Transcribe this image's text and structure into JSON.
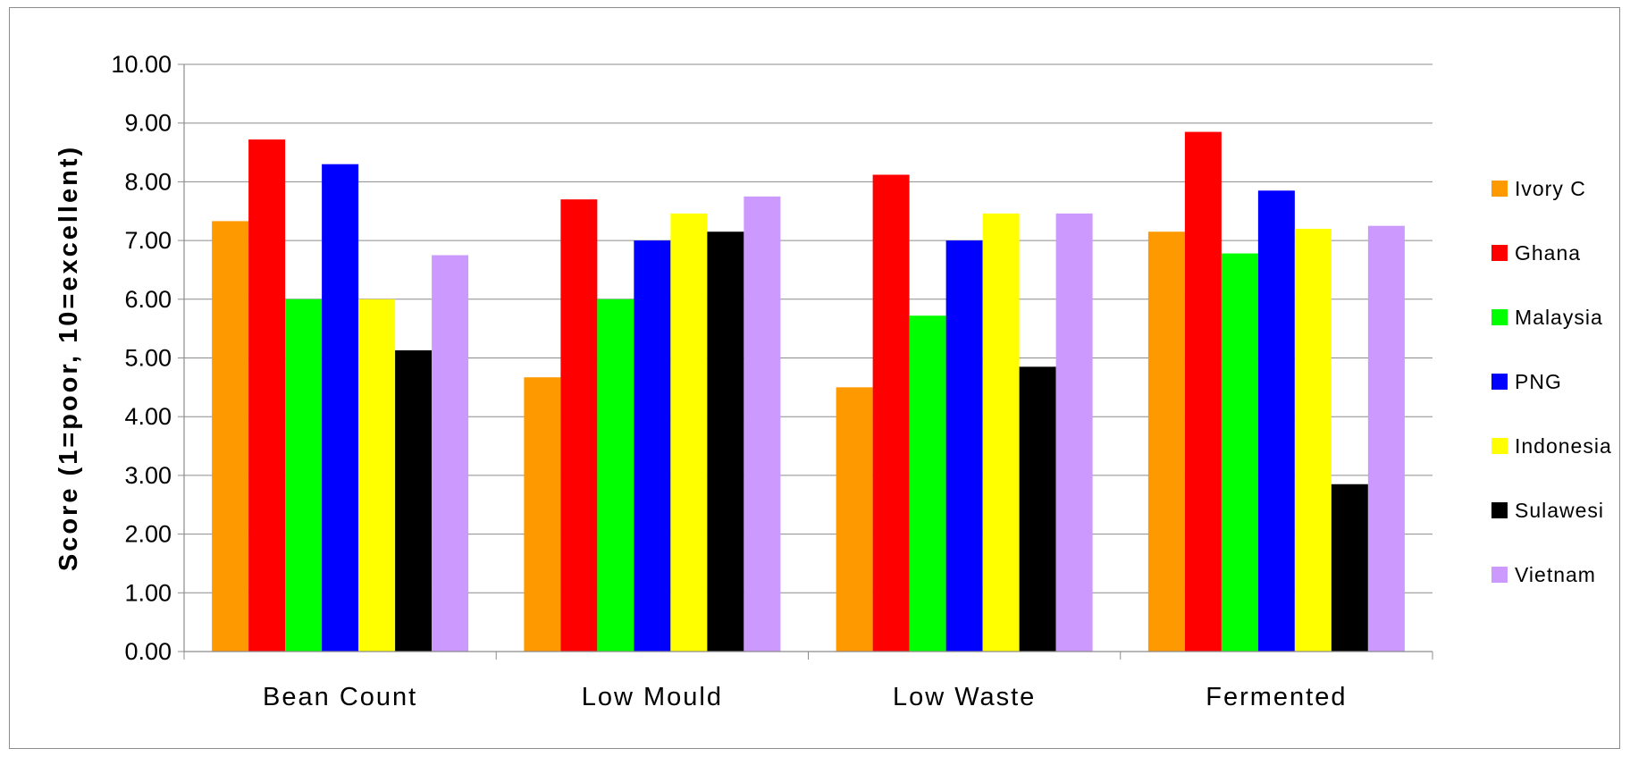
{
  "chart_data": {
    "type": "bar",
    "categories": [
      "Bean Count",
      "Low Mould",
      "Low Waste",
      "Fermented"
    ],
    "series": [
      {
        "name": "Ivory C",
        "color": "#FF9900",
        "values": [
          7.33,
          4.67,
          4.5,
          7.15
        ]
      },
      {
        "name": "Ghana",
        "color": "#FF0000",
        "values": [
          8.72,
          7.7,
          8.12,
          8.85
        ]
      },
      {
        "name": "Malaysia",
        "color": "#00FF00",
        "values": [
          6.0,
          6.0,
          5.72,
          6.78
        ]
      },
      {
        "name": "PNG",
        "color": "#0000FF",
        "values": [
          8.3,
          7.0,
          7.0,
          7.85
        ]
      },
      {
        "name": "Indonesia",
        "color": "#FFFF00",
        "values": [
          6.0,
          7.46,
          7.46,
          7.2
        ]
      },
      {
        "name": "Sulawesi",
        "color": "#000000",
        "values": [
          5.13,
          7.15,
          4.85,
          2.85
        ]
      },
      {
        "name": "Vietnam",
        "color": "#CC99FF",
        "values": [
          6.75,
          7.75,
          7.46,
          7.25
        ]
      }
    ],
    "ylabel": "Score (1=poor, 10=excellent)",
    "xlabel": "",
    "ylim": [
      0,
      10
    ],
    "yticks": [
      "0.00",
      "1.00",
      "2.00",
      "3.00",
      "4.00",
      "5.00",
      "6.00",
      "7.00",
      "8.00",
      "9.00",
      "10.00"
    ],
    "grid": true,
    "legend_position": "right"
  }
}
